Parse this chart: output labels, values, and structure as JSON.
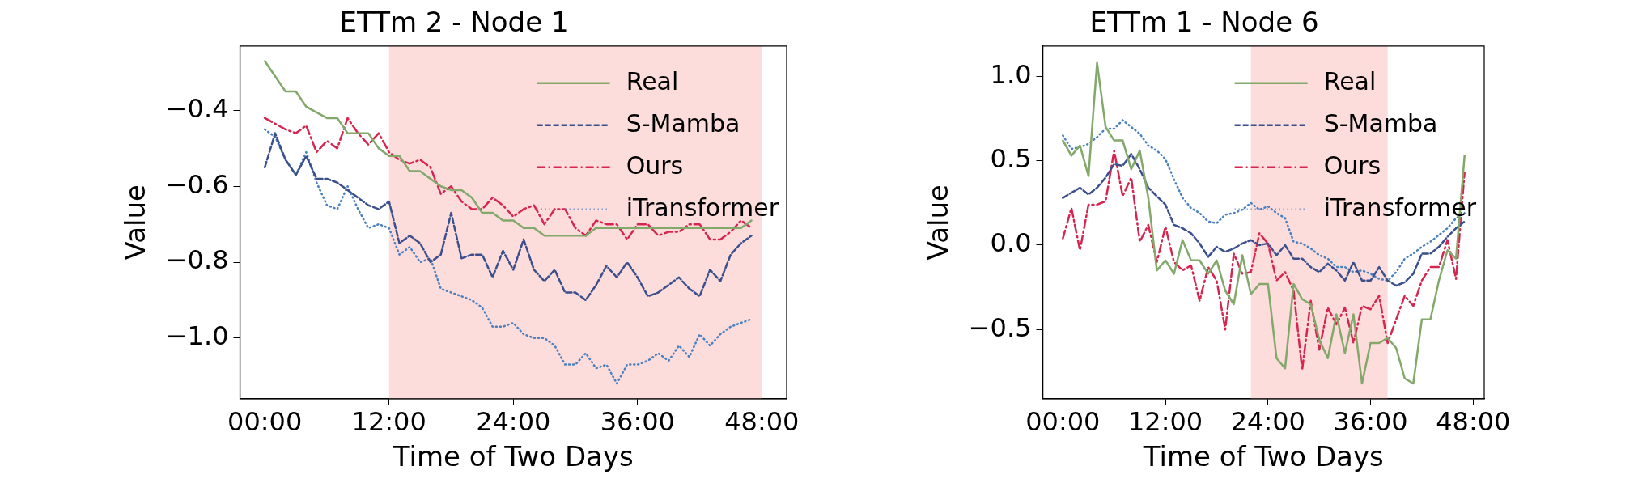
{
  "chart_data": [
    {
      "type": "line",
      "title": "ETTm 2 - Node 1",
      "xlabel": "Time of Two Days",
      "ylabel": "Value",
      "xlim": [
        -2.4,
        50.4
      ],
      "ylim": [
        -1.16,
        -0.23
      ],
      "xticks": [
        {
          "value": 0,
          "label": "00:00"
        },
        {
          "value": 12,
          "label": "12:00"
        },
        {
          "value": 24,
          "label": "24:00"
        },
        {
          "value": 36,
          "label": "36:00"
        },
        {
          "value": 48,
          "label": "48:00"
        }
      ],
      "yticks": [
        {
          "value": -0.4,
          "label": "−0.4"
        },
        {
          "value": -0.6,
          "label": "−0.6"
        },
        {
          "value": -0.8,
          "label": "−0.8"
        },
        {
          "value": -1.0,
          "label": "−1.0"
        }
      ],
      "grid": false,
      "legend": "top right",
      "marker": "none",
      "bands": [
        {
          "axis": "x",
          "from": 12,
          "to": 48,
          "color": "#fddcdc"
        }
      ],
      "series": [
        {
          "name": "Real",
          "color": "#82a86a",
          "line_style": "solid",
          "x": [
            0,
            2,
            3,
            4,
            6,
            7,
            8,
            10,
            11,
            12,
            13,
            14,
            15,
            16,
            17,
            18,
            19,
            20,
            21,
            22,
            23,
            24,
            25,
            26,
            27,
            31,
            32,
            46,
            47
          ],
          "values": [
            -0.27,
            -0.35,
            -0.35,
            -0.39,
            -0.42,
            -0.42,
            -0.46,
            -0.46,
            -0.5,
            -0.52,
            -0.52,
            -0.56,
            -0.56,
            -0.58,
            -0.6,
            -0.61,
            -0.61,
            -0.63,
            -0.67,
            -0.67,
            -0.69,
            -0.69,
            -0.71,
            -0.71,
            -0.73,
            -0.73,
            -0.71,
            -0.71,
            -0.69
          ]
        },
        {
          "name": "S-Mamba",
          "color": "#3a4f8c",
          "line_style": "dashed",
          "x": [
            0,
            1,
            2,
            3,
            4,
            5,
            6,
            7,
            8,
            9,
            10,
            11,
            12,
            13,
            14,
            15,
            16,
            17,
            18,
            19,
            20,
            21,
            22,
            23,
            24,
            25,
            26,
            27,
            28,
            29,
            30,
            31,
            32,
            33,
            34,
            35,
            36,
            37,
            38,
            39,
            40,
            41,
            42,
            43,
            44,
            45,
            46,
            47
          ],
          "values": [
            -0.55,
            -0.46,
            -0.53,
            -0.57,
            -0.52,
            -0.58,
            -0.58,
            -0.59,
            -0.61,
            -0.63,
            -0.65,
            -0.66,
            -0.64,
            -0.75,
            -0.73,
            -0.75,
            -0.8,
            -0.78,
            -0.67,
            -0.79,
            -0.78,
            -0.78,
            -0.84,
            -0.77,
            -0.82,
            -0.74,
            -0.82,
            -0.85,
            -0.82,
            -0.88,
            -0.88,
            -0.9,
            -0.86,
            -0.81,
            -0.84,
            -0.8,
            -0.84,
            -0.89,
            -0.88,
            -0.86,
            -0.84,
            -0.87,
            -0.89,
            -0.82,
            -0.85,
            -0.78,
            -0.75,
            -0.73
          ]
        },
        {
          "name": "Ours",
          "color": "#d6264f",
          "line_style": "dashdot",
          "x": [
            0,
            2,
            3,
            4,
            5,
            6,
            7,
            8,
            9,
            10,
            11,
            12,
            13,
            14,
            15,
            16,
            17,
            18,
            19,
            20,
            21,
            22,
            23,
            24,
            25,
            26,
            27,
            28,
            29,
            30,
            31,
            32,
            33,
            34,
            35,
            36,
            37,
            38,
            39,
            40,
            41,
            42,
            43,
            44,
            45,
            46,
            47
          ],
          "values": [
            -0.42,
            -0.45,
            -0.46,
            -0.44,
            -0.51,
            -0.48,
            -0.5,
            -0.42,
            -0.46,
            -0.49,
            -0.46,
            -0.51,
            -0.53,
            -0.54,
            -0.53,
            -0.55,
            -0.62,
            -0.6,
            -0.64,
            -0.66,
            -0.66,
            -0.63,
            -0.65,
            -0.68,
            -0.66,
            -0.65,
            -0.7,
            -0.66,
            -0.66,
            -0.71,
            -0.73,
            -0.69,
            -0.7,
            -0.7,
            -0.74,
            -0.7,
            -0.7,
            -0.73,
            -0.72,
            -0.72,
            -0.7,
            -0.7,
            -0.74,
            -0.74,
            -0.72,
            -0.69,
            -0.71
          ]
        },
        {
          "name": "iTransformer",
          "color": "#4a80c0",
          "line_style": "dotted",
          "x": [
            0,
            1,
            2,
            3,
            4,
            5,
            6,
            7,
            8,
            9,
            10,
            11,
            12,
            13,
            14,
            15,
            16,
            17,
            18,
            19,
            20,
            21,
            22,
            23,
            24,
            25,
            26,
            27,
            28,
            29,
            30,
            31,
            32,
            33,
            34,
            35,
            36,
            37,
            38,
            39,
            40,
            41,
            42,
            43,
            44,
            45,
            46,
            47
          ],
          "values": [
            -0.45,
            -0.47,
            -0.53,
            -0.57,
            -0.51,
            -0.59,
            -0.65,
            -0.66,
            -0.6,
            -0.66,
            -0.71,
            -0.7,
            -0.71,
            -0.78,
            -0.76,
            -0.8,
            -0.79,
            -0.87,
            -0.88,
            -0.89,
            -0.9,
            -0.92,
            -0.97,
            -0.97,
            -0.96,
            -0.99,
            -1.0,
            -1.0,
            -1.02,
            -1.07,
            -1.07,
            -1.04,
            -1.08,
            -1.07,
            -1.12,
            -1.07,
            -1.07,
            -1.06,
            -1.04,
            -1.06,
            -1.02,
            -1.05,
            -0.99,
            -1.02,
            -0.99,
            -0.97,
            -0.96,
            -0.95
          ]
        }
      ]
    },
    {
      "type": "line",
      "title": "ETTm 1 - Node 6",
      "xlabel": "Time of Two Days",
      "ylabel": "Value",
      "xlim": [
        -2.35,
        49.3
      ],
      "ylim": [
        -0.91,
        1.18
      ],
      "xticks": [
        {
          "value": 0,
          "label": "00:00"
        },
        {
          "value": 12,
          "label": "12:00"
        },
        {
          "value": 24,
          "label": "24:00"
        },
        {
          "value": 36,
          "label": "36:00"
        },
        {
          "value": 48,
          "label": "48:00"
        }
      ],
      "yticks": [
        {
          "value": 1.0,
          "label": "1.0"
        },
        {
          "value": 0.5,
          "label": "0.5"
        },
        {
          "value": 0.0,
          "label": "0.0"
        },
        {
          "value": -0.5,
          "label": "−0.5"
        }
      ],
      "grid": false,
      "legend": "top right",
      "marker": "none",
      "bands": [
        {
          "axis": "x",
          "from": 22,
          "to": 38,
          "color": "#fddcdc"
        }
      ],
      "series": [
        {
          "name": "Real",
          "color": "#82a86a",
          "line_style": "solid",
          "x": [
            0,
            1,
            2,
            3,
            4,
            5,
            6,
            7,
            8,
            9,
            10,
            11,
            12,
            13,
            14,
            15,
            16,
            17,
            18,
            19,
            20,
            21,
            22,
            23,
            24,
            25,
            26,
            27,
            28,
            29,
            30,
            31,
            32,
            33,
            34,
            35,
            36,
            37,
            38,
            39,
            40,
            41,
            42,
            43,
            44,
            45,
            46,
            47
          ],
          "values": [
            0.62,
            0.53,
            0.59,
            0.41,
            1.08,
            0.7,
            0.62,
            0.62,
            0.45,
            0.56,
            0.28,
            -0.15,
            -0.09,
            -0.17,
            0.03,
            -0.09,
            -0.09,
            -0.17,
            -0.09,
            -0.27,
            -0.35,
            -0.06,
            -0.29,
            -0.23,
            -0.23,
            -0.67,
            -0.73,
            -0.23,
            -0.32,
            -0.35,
            -0.56,
            -0.67,
            -0.41,
            -0.64,
            -0.41,
            -0.82,
            -0.58,
            -0.58,
            -0.55,
            -0.61,
            -0.79,
            -0.82,
            -0.44,
            -0.44,
            -0.21,
            -0.03,
            -0.08,
            0.53
          ]
        },
        {
          "name": "S-Mamba",
          "color": "#3a4f8c",
          "line_style": "dashed",
          "x": [
            0,
            1,
            2,
            3,
            4,
            5,
            6,
            7,
            8,
            9,
            10,
            11,
            12,
            13,
            14,
            15,
            16,
            17,
            18,
            19,
            20,
            21,
            22,
            23,
            24,
            25,
            26,
            27,
            28,
            29,
            30,
            31,
            32,
            33,
            34,
            35,
            36,
            37,
            38,
            39,
            40,
            41,
            42,
            43,
            44,
            45,
            46,
            47
          ],
          "values": [
            0.28,
            0.31,
            0.34,
            0.3,
            0.34,
            0.4,
            0.48,
            0.47,
            0.54,
            0.45,
            0.34,
            0.29,
            0.24,
            0.12,
            0.1,
            0.07,
            0.01,
            -0.07,
            -0.01,
            -0.04,
            -0.02,
            0.01,
            0.03,
            0.0,
            0.01,
            -0.06,
            0.0,
            -0.08,
            -0.08,
            -0.13,
            -0.16,
            -0.11,
            -0.15,
            -0.21,
            -0.1,
            -0.21,
            -0.21,
            -0.13,
            -0.21,
            -0.24,
            -0.22,
            -0.17,
            -0.05,
            -0.05,
            -0.01,
            0.05,
            0.1,
            0.14
          ]
        },
        {
          "name": "Ours",
          "color": "#d6264f",
          "line_style": "dashdot",
          "x": [
            0,
            1,
            2,
            3,
            4,
            5,
            6,
            7,
            8,
            9,
            10,
            11,
            12,
            13,
            14,
            15,
            16,
            17,
            18,
            19,
            20,
            21,
            22,
            23,
            24,
            25,
            26,
            27,
            28,
            29,
            30,
            31,
            32,
            33,
            34,
            35,
            36,
            37,
            38,
            39,
            40,
            41,
            42,
            43,
            44,
            45,
            46,
            47
          ],
          "values": [
            0.04,
            0.22,
            -0.03,
            0.24,
            0.24,
            0.26,
            0.56,
            0.29,
            0.4,
            0.02,
            0.12,
            -0.1,
            0.11,
            -0.1,
            -0.15,
            -0.12,
            -0.33,
            -0.13,
            -0.21,
            -0.5,
            -0.05,
            -0.17,
            -0.16,
            0.07,
            0.01,
            -0.21,
            -0.16,
            -0.27,
            -0.74,
            -0.33,
            -0.62,
            -0.37,
            -0.47,
            -0.37,
            -0.58,
            -0.36,
            -0.38,
            -0.3,
            -0.58,
            -0.44,
            -0.3,
            -0.36,
            -0.21,
            -0.13,
            -0.13,
            0.03,
            -0.2,
            0.43
          ]
        },
        {
          "name": "iTransformer",
          "color": "#4a80c0",
          "line_style": "dotted",
          "x": [
            0,
            1,
            2,
            3,
            4,
            5,
            6,
            7,
            8,
            9,
            10,
            11,
            12,
            13,
            14,
            15,
            16,
            17,
            18,
            19,
            20,
            21,
            22,
            23,
            24,
            25,
            26,
            27,
            28,
            29,
            30,
            31,
            32,
            33,
            34,
            35,
            36,
            37,
            38,
            39,
            40,
            41,
            42,
            43,
            44,
            45,
            46,
            47
          ],
          "values": [
            0.65,
            0.57,
            0.58,
            0.6,
            0.64,
            0.69,
            0.69,
            0.74,
            0.7,
            0.66,
            0.59,
            0.56,
            0.51,
            0.39,
            0.28,
            0.22,
            0.19,
            0.14,
            0.13,
            0.18,
            0.19,
            0.21,
            0.25,
            0.21,
            0.23,
            0.19,
            0.16,
            0.02,
            0.01,
            -0.02,
            -0.06,
            -0.08,
            -0.13,
            -0.13,
            -0.16,
            -0.15,
            -0.17,
            -0.2,
            -0.21,
            -0.16,
            -0.08,
            -0.05,
            -0.01,
            0.02,
            0.06,
            0.1,
            0.16,
            0.19
          ]
        }
      ]
    }
  ]
}
